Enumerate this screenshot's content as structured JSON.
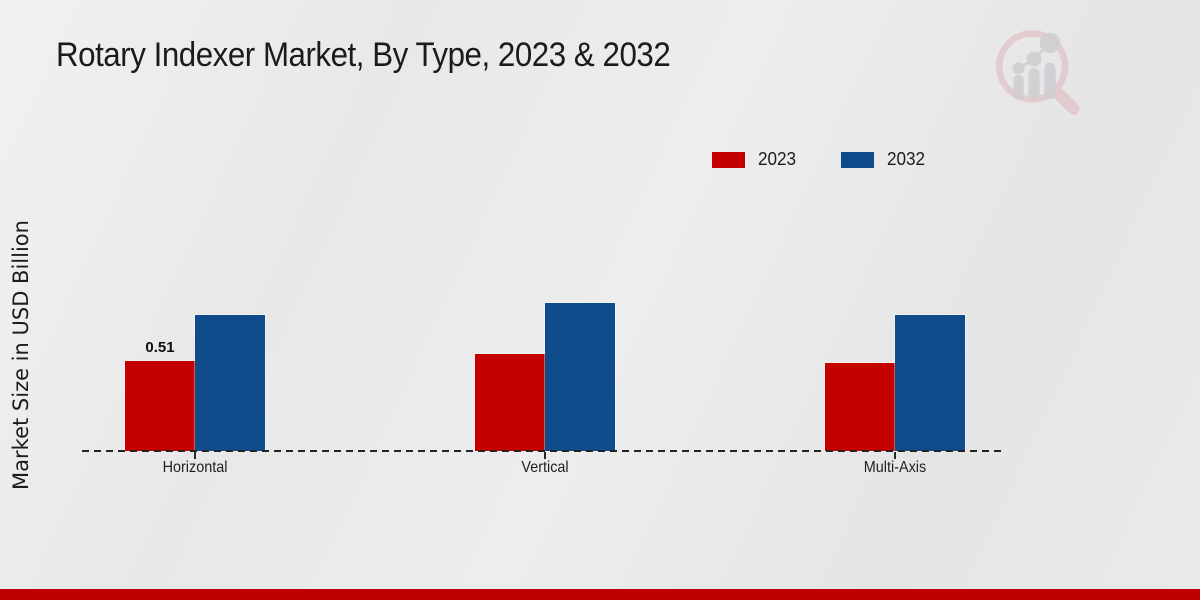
{
  "page": {
    "title": "Rotary Indexer Market, By Type, 2023 & 2032",
    "y_axis_label": "Market Size in USD Billion"
  },
  "branding": {
    "logo_icon": "market-research-future-watermark-logo"
  },
  "colors": {
    "series_2023": "#c40001",
    "series_2032": "#0f4c8c",
    "bottom_bar": "#bd0101",
    "axis_line": "#232323",
    "title_text": "#1b1b1b",
    "logo_pink": "#dfb6bc",
    "logo_gray": "#bcbcc2"
  },
  "chart_data": {
    "type": "bar",
    "title": "Rotary Indexer Market, By Type, 2023 & 2032",
    "xlabel": "",
    "ylabel": "Market Size in USD Billion",
    "categories": [
      "Horizontal",
      "Vertical",
      "Multi-Axis"
    ],
    "series": [
      {
        "name": "2023",
        "color": "#c40001",
        "values": [
          0.51,
          0.55,
          0.5
        ],
        "value_labels": [
          "0.51",
          "",
          ""
        ]
      },
      {
        "name": "2032",
        "color": "#0f4c8c",
        "values": [
          0.77,
          0.84,
          0.77
        ],
        "value_labels": [
          "",
          "",
          ""
        ]
      }
    ],
    "ylim": [
      0,
      1.0
    ],
    "grid": false,
    "y_axis_ticks_visible": false,
    "legend_position": "top-right",
    "baseline_style": "dashed"
  }
}
